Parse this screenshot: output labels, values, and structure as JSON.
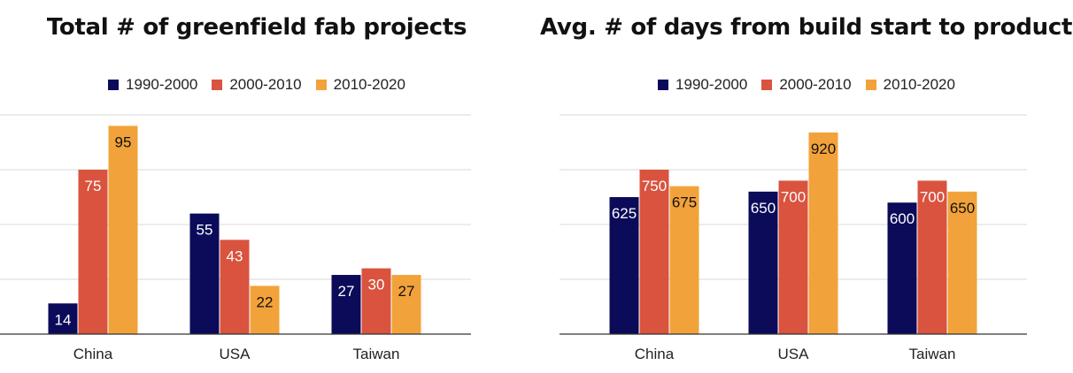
{
  "colors": {
    "1990-2000": "#0b0b5a",
    "2000-2010": "#d9533f",
    "2010-2020": "#f2a23a",
    "grid": "#d9d9d9",
    "axis": "#333333"
  },
  "chart_data": [
    {
      "type": "bar",
      "title": "Total # of greenfield fab projects",
      "categories": [
        "China",
        "USA",
        "Taiwan"
      ],
      "series": [
        {
          "name": "1990-2000",
          "values": [
            14,
            55,
            27
          ]
        },
        {
          "name": "2000-2010",
          "values": [
            75,
            43,
            30
          ]
        },
        {
          "name": "2010-2020",
          "values": [
            95,
            22,
            27
          ]
        }
      ],
      "ylim": [
        0,
        100
      ],
      "ygrid": [
        0,
        25,
        50,
        75,
        100
      ],
      "grid": true,
      "legend": "top-center",
      "data_labels": true
    },
    {
      "type": "bar",
      "title": "Avg. # of days from build start to production",
      "categories": [
        "China",
        "USA",
        "Taiwan"
      ],
      "series": [
        {
          "name": "1990-2000",
          "values": [
            625,
            650,
            600
          ]
        },
        {
          "name": "2000-2010",
          "values": [
            750,
            700,
            700
          ]
        },
        {
          "name": "2010-2020",
          "values": [
            675,
            920,
            650
          ]
        }
      ],
      "ylim": [
        0,
        1000
      ],
      "ygrid": [
        0,
        250,
        500,
        750,
        1000
      ],
      "grid": true,
      "legend": "top-center",
      "data_labels": true
    }
  ]
}
